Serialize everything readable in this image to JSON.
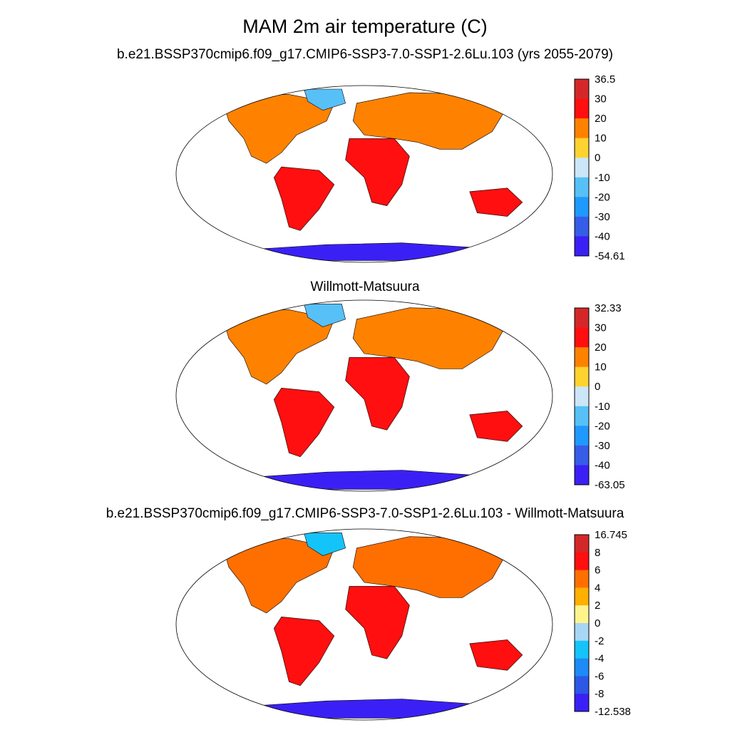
{
  "figure": {
    "title": "MAM 2m air temperature (C)"
  },
  "panels": [
    {
      "id": "model",
      "title": "b.e21.BSSP370cmip6.f09_g17.CMIP6-SSP3-7.0-SSP1-2.6Lu.103 (yrs 2055-2079)",
      "colorbar": {
        "labels": [
          "36.5",
          "30",
          "20",
          "10",
          "0",
          "-10",
          "-20",
          "-30",
          "-40",
          "-54.61"
        ],
        "colors": [
          "#d42828",
          "#ff0f0f",
          "#fe8200",
          "#fed330",
          "#cbe6f7",
          "#57c0f7",
          "#1f99fd",
          "#365de8",
          "#3b20f5"
        ]
      }
    },
    {
      "id": "obs",
      "title": "Willmott-Matsuura",
      "colorbar": {
        "labels": [
          "32.33",
          "30",
          "20",
          "10",
          "0",
          "-10",
          "-20",
          "-30",
          "-40",
          "-63.05"
        ],
        "colors": [
          "#d42828",
          "#ff0f0f",
          "#fe8200",
          "#fed330",
          "#cbe6f7",
          "#57c0f7",
          "#1f99fd",
          "#365de8",
          "#3b20f5"
        ]
      }
    },
    {
      "id": "diff",
      "title": "b.e21.BSSP370cmip6.f09_g17.CMIP6-SSP3-7.0-SSP1-2.6Lu.103 - Willmott-Matsuura",
      "colorbar": {
        "labels": [
          "16.745",
          "8",
          "6",
          "4",
          "2",
          "0",
          "-2",
          "-4",
          "-6",
          "-8",
          "-12.538"
        ],
        "colors": [
          "#d42828",
          "#ff0f0f",
          "#ff6f00",
          "#ffb000",
          "#fef48c",
          "#a8d6f5",
          "#14c4f8",
          "#1d8af5",
          "#2c58e5",
          "#3b20f5"
        ]
      }
    }
  ]
}
